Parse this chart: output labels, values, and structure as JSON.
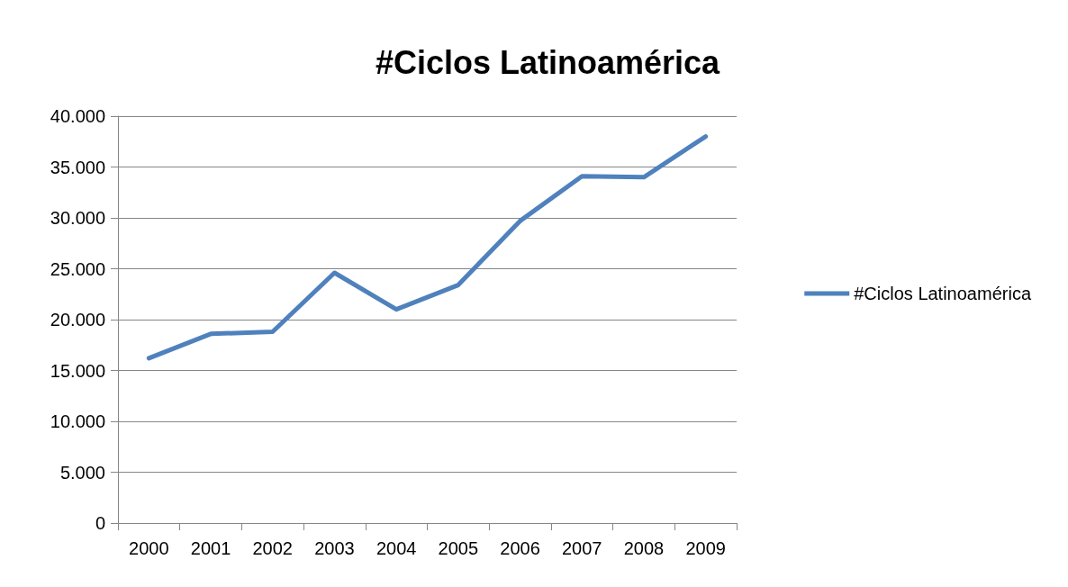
{
  "chart_data": {
    "type": "line",
    "title": "#Ciclos Latinoamérica",
    "categories": [
      "2000",
      "2001",
      "2002",
      "2003",
      "2004",
      "2005",
      "2006",
      "2007",
      "2008",
      "2009"
    ],
    "series": [
      {
        "name": "#Ciclos Latinoamérica",
        "color": "#4f81bd",
        "values": [
          16200,
          18600,
          18800,
          24600,
          21000,
          23400,
          29700,
          34100,
          34000,
          38000
        ]
      }
    ],
    "ylim": [
      0,
      40000
    ],
    "yticks": [
      {
        "value": 0,
        "label": "0"
      },
      {
        "value": 5000,
        "label": "5.000"
      },
      {
        "value": 10000,
        "label": "10.000"
      },
      {
        "value": 15000,
        "label": "15.000"
      },
      {
        "value": 20000,
        "label": "20.000"
      },
      {
        "value": 25000,
        "label": "25.000"
      },
      {
        "value": 30000,
        "label": "30.000"
      },
      {
        "value": 35000,
        "label": "35.000"
      },
      {
        "value": 40000,
        "label": "40.000"
      }
    ],
    "grid": "y",
    "legend": "right",
    "marker": "none",
    "line_style": "solid"
  }
}
